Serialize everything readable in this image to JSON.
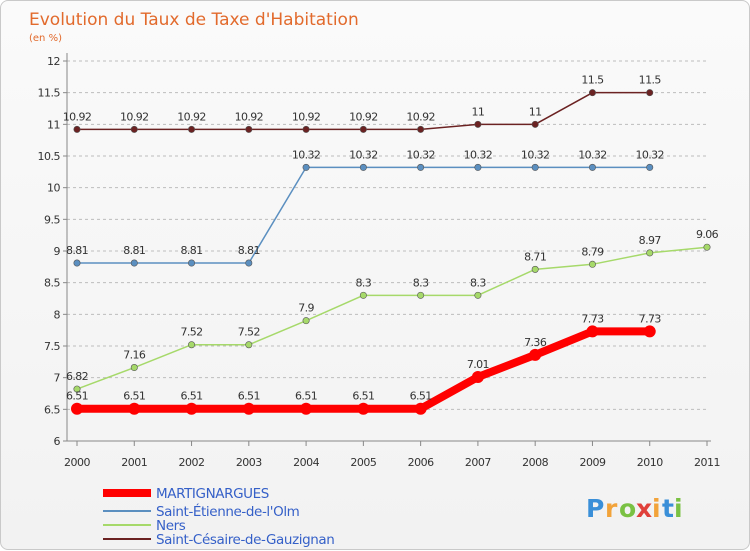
{
  "chart_data": {
    "type": "line",
    "title": "Evolution du Taux de Taxe d'Habitation",
    "subtitle": "(en %)",
    "x": [
      "2000",
      "2001",
      "2002",
      "2003",
      "2004",
      "2005",
      "2006",
      "2007",
      "2008",
      "2009",
      "2010",
      "2011"
    ],
    "ylim": [
      6,
      12
    ],
    "yticks": [
      "6",
      "6.5",
      "7",
      "7.5",
      "8",
      "8.5",
      "9",
      "9.5",
      "10",
      "10.5",
      "11",
      "11.5",
      "12"
    ],
    "grid": "horizontal dashed",
    "legend_position": "bottom-left",
    "series": [
      {
        "name": "Saint-Césaire-de-Gauzignan",
        "color": "#6b2222",
        "values": [
          10.92,
          10.92,
          10.92,
          10.92,
          10.92,
          10.92,
          10.92,
          11,
          11,
          11.5,
          11.5,
          null
        ],
        "labels": [
          "10.92",
          "10.92",
          "10.92",
          "10.92",
          "10.92",
          "10.92",
          "10.92",
          "11",
          "11",
          "11.5",
          "11.5",
          ""
        ]
      },
      {
        "name": "Saint-Étienne-de-l'Olm",
        "color": "#5b8fc0",
        "values": [
          8.81,
          8.81,
          8.81,
          8.81,
          10.32,
          10.32,
          10.32,
          10.32,
          10.32,
          10.32,
          10.32,
          null
        ],
        "labels": [
          "8.81",
          "8.81",
          "8.81",
          "8.81",
          "10.32",
          "10.32",
          "10.32",
          "10.32",
          "10.32",
          "10.32",
          "10.32",
          ""
        ]
      },
      {
        "name": "Ners",
        "color": "#a6d96a",
        "values": [
          6.82,
          7.16,
          7.52,
          7.52,
          7.9,
          8.3,
          8.3,
          8.3,
          8.71,
          8.79,
          8.97,
          9.06
        ],
        "labels": [
          "6.82",
          "7.16",
          "7.52",
          "7.52",
          "7.9",
          "8.3",
          "8.3",
          "8.3",
          "8.71",
          "8.79",
          "8.97",
          "9.06"
        ]
      },
      {
        "name": "MARTIGNARGUES",
        "color": "#ff0000",
        "values": [
          6.51,
          6.51,
          6.51,
          6.51,
          6.51,
          6.51,
          6.51,
          7.01,
          7.36,
          7.73,
          7.73,
          null
        ],
        "labels": [
          "6.51",
          "6.51",
          "6.51",
          "6.51",
          "6.51",
          "6.51",
          "6.51",
          "7.01",
          "7.36",
          "7.73",
          "7.73",
          ""
        ]
      }
    ],
    "legend": [
      {
        "name": "MARTIGNARGUES",
        "color": "#ff0000"
      },
      {
        "name": "Saint-Étienne-de-l'Olm",
        "color": "#5b8fc0"
      },
      {
        "name": "Ners",
        "color": "#a6d96a"
      },
      {
        "name": "Saint-Césaire-de-Gauzignan",
        "color": "#6b2222"
      }
    ]
  },
  "logo": {
    "letters": [
      "P",
      "r",
      "o",
      "x",
      "i",
      "t",
      "i"
    ],
    "colors": [
      "#3a8fd8",
      "#f2a33a",
      "#7ac143",
      "#e0403a",
      "#f2a33a",
      "#3a8fd8",
      "#7ac143"
    ]
  }
}
